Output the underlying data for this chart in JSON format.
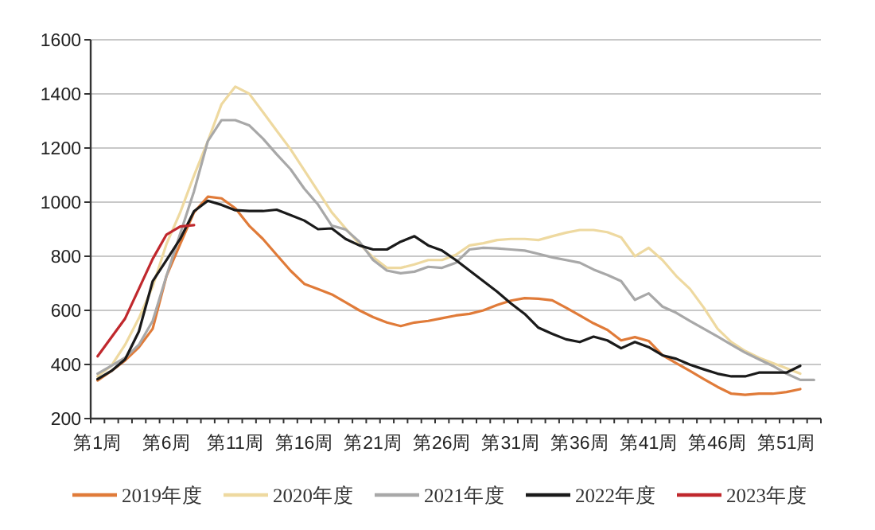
{
  "chart_data": {
    "type": "line",
    "categories": [
      "第1周",
      null,
      null,
      null,
      null,
      "第6周",
      null,
      null,
      null,
      null,
      "第11周",
      null,
      null,
      null,
      null,
      "第16周",
      null,
      null,
      null,
      null,
      "第21周",
      null,
      null,
      null,
      null,
      "第26周",
      null,
      null,
      null,
      null,
      "第31周",
      null,
      null,
      null,
      null,
      "第36周",
      null,
      null,
      null,
      null,
      "第41周",
      null,
      null,
      null,
      null,
      "第46周",
      null,
      null,
      null,
      null,
      "第51周",
      null,
      null
    ],
    "ylim": [
      200,
      1600
    ],
    "yticks": [
      200,
      400,
      600,
      800,
      1000,
      1200,
      1400,
      1600
    ],
    "grid": "y",
    "legend": "bottom",
    "marker": "none",
    "line_style": "solid",
    "series": [
      {
        "name": "2019年度",
        "color": "#e07b39",
        "values": [
          341,
          376,
          415,
          464,
          532,
          727,
          845,
          962,
          1020,
          1014,
          977,
          913,
          864,
          805,
          747,
          698,
          679,
          659,
          630,
          600,
          575,
          555,
          542,
          555,
          561,
          571,
          581,
          587,
          600,
          620,
          636,
          645,
          643,
          637,
          610,
          581,
          552,
          528,
          489,
          501,
          487,
          434,
          405,
          376,
          346,
          317,
          292,
          288,
          292,
          292,
          298,
          309,
          null
        ]
      },
      {
        "name": "2020年度",
        "color": "#eed9a0",
        "values": [
          356,
          395,
          473,
          571,
          688,
          845,
          962,
          1098,
          1225,
          1362,
          1427,
          1401,
          1333,
          1264,
          1196,
          1118,
          1040,
          962,
          903,
          845,
          796,
          757,
          757,
          770,
          786,
          786,
          805,
          840,
          848,
          860,
          864,
          864,
          860,
          874,
          887,
          897,
          897,
          889,
          870,
          800,
          831,
          786,
          727,
          679,
          610,
          532,
          483,
          450,
          425,
          405,
          386,
          366,
          null
        ]
      },
      {
        "name": "2021年度",
        "color": "#a8a8a8",
        "values": [
          366,
          395,
          425,
          473,
          561,
          727,
          884,
          1040,
          1225,
          1303,
          1303,
          1284,
          1235,
          1177,
          1122,
          1050,
          991,
          913,
          899,
          854,
          786,
          747,
          737,
          743,
          761,
          757,
          776,
          825,
          831,
          829,
          825,
          821,
          809,
          796,
          786,
          776,
          751,
          731,
          708,
          639,
          663,
          614,
          591,
          561,
          532,
          503,
          473,
          444,
          419,
          395,
          366,
          343,
          343
        ]
      },
      {
        "name": "2022年度",
        "color": "#1a1a1a",
        "values": [
          346,
          376,
          419,
          522,
          708,
          786,
          864,
          966,
          1005,
          990,
          970,
          967,
          967,
          972,
          952,
          932,
          900,
          903,
          864,
          840,
          825,
          825,
          854,
          874,
          840,
          821,
          786,
          747,
          708,
          669,
          626,
          587,
          536,
          513,
          493,
          483,
          503,
          489,
          460,
          483,
          464,
          434,
          421,
          399,
          382,
          366,
          356,
          356,
          370,
          370,
          370,
          395,
          null
        ]
      },
      {
        "name": "2023年度",
        "color": "#c0282d",
        "values": [
          430,
          500,
          570,
          680,
          790,
          880,
          910,
          915,
          null,
          null,
          null,
          null,
          null,
          null,
          null,
          null,
          null,
          null,
          null,
          null,
          null,
          null,
          null,
          null,
          null,
          null,
          null,
          null,
          null,
          null,
          null,
          null,
          null,
          null,
          null,
          null,
          null,
          null,
          null,
          null,
          null,
          null,
          null,
          null,
          null,
          null,
          null,
          null,
          null,
          null,
          null,
          null,
          null
        ]
      }
    ]
  }
}
